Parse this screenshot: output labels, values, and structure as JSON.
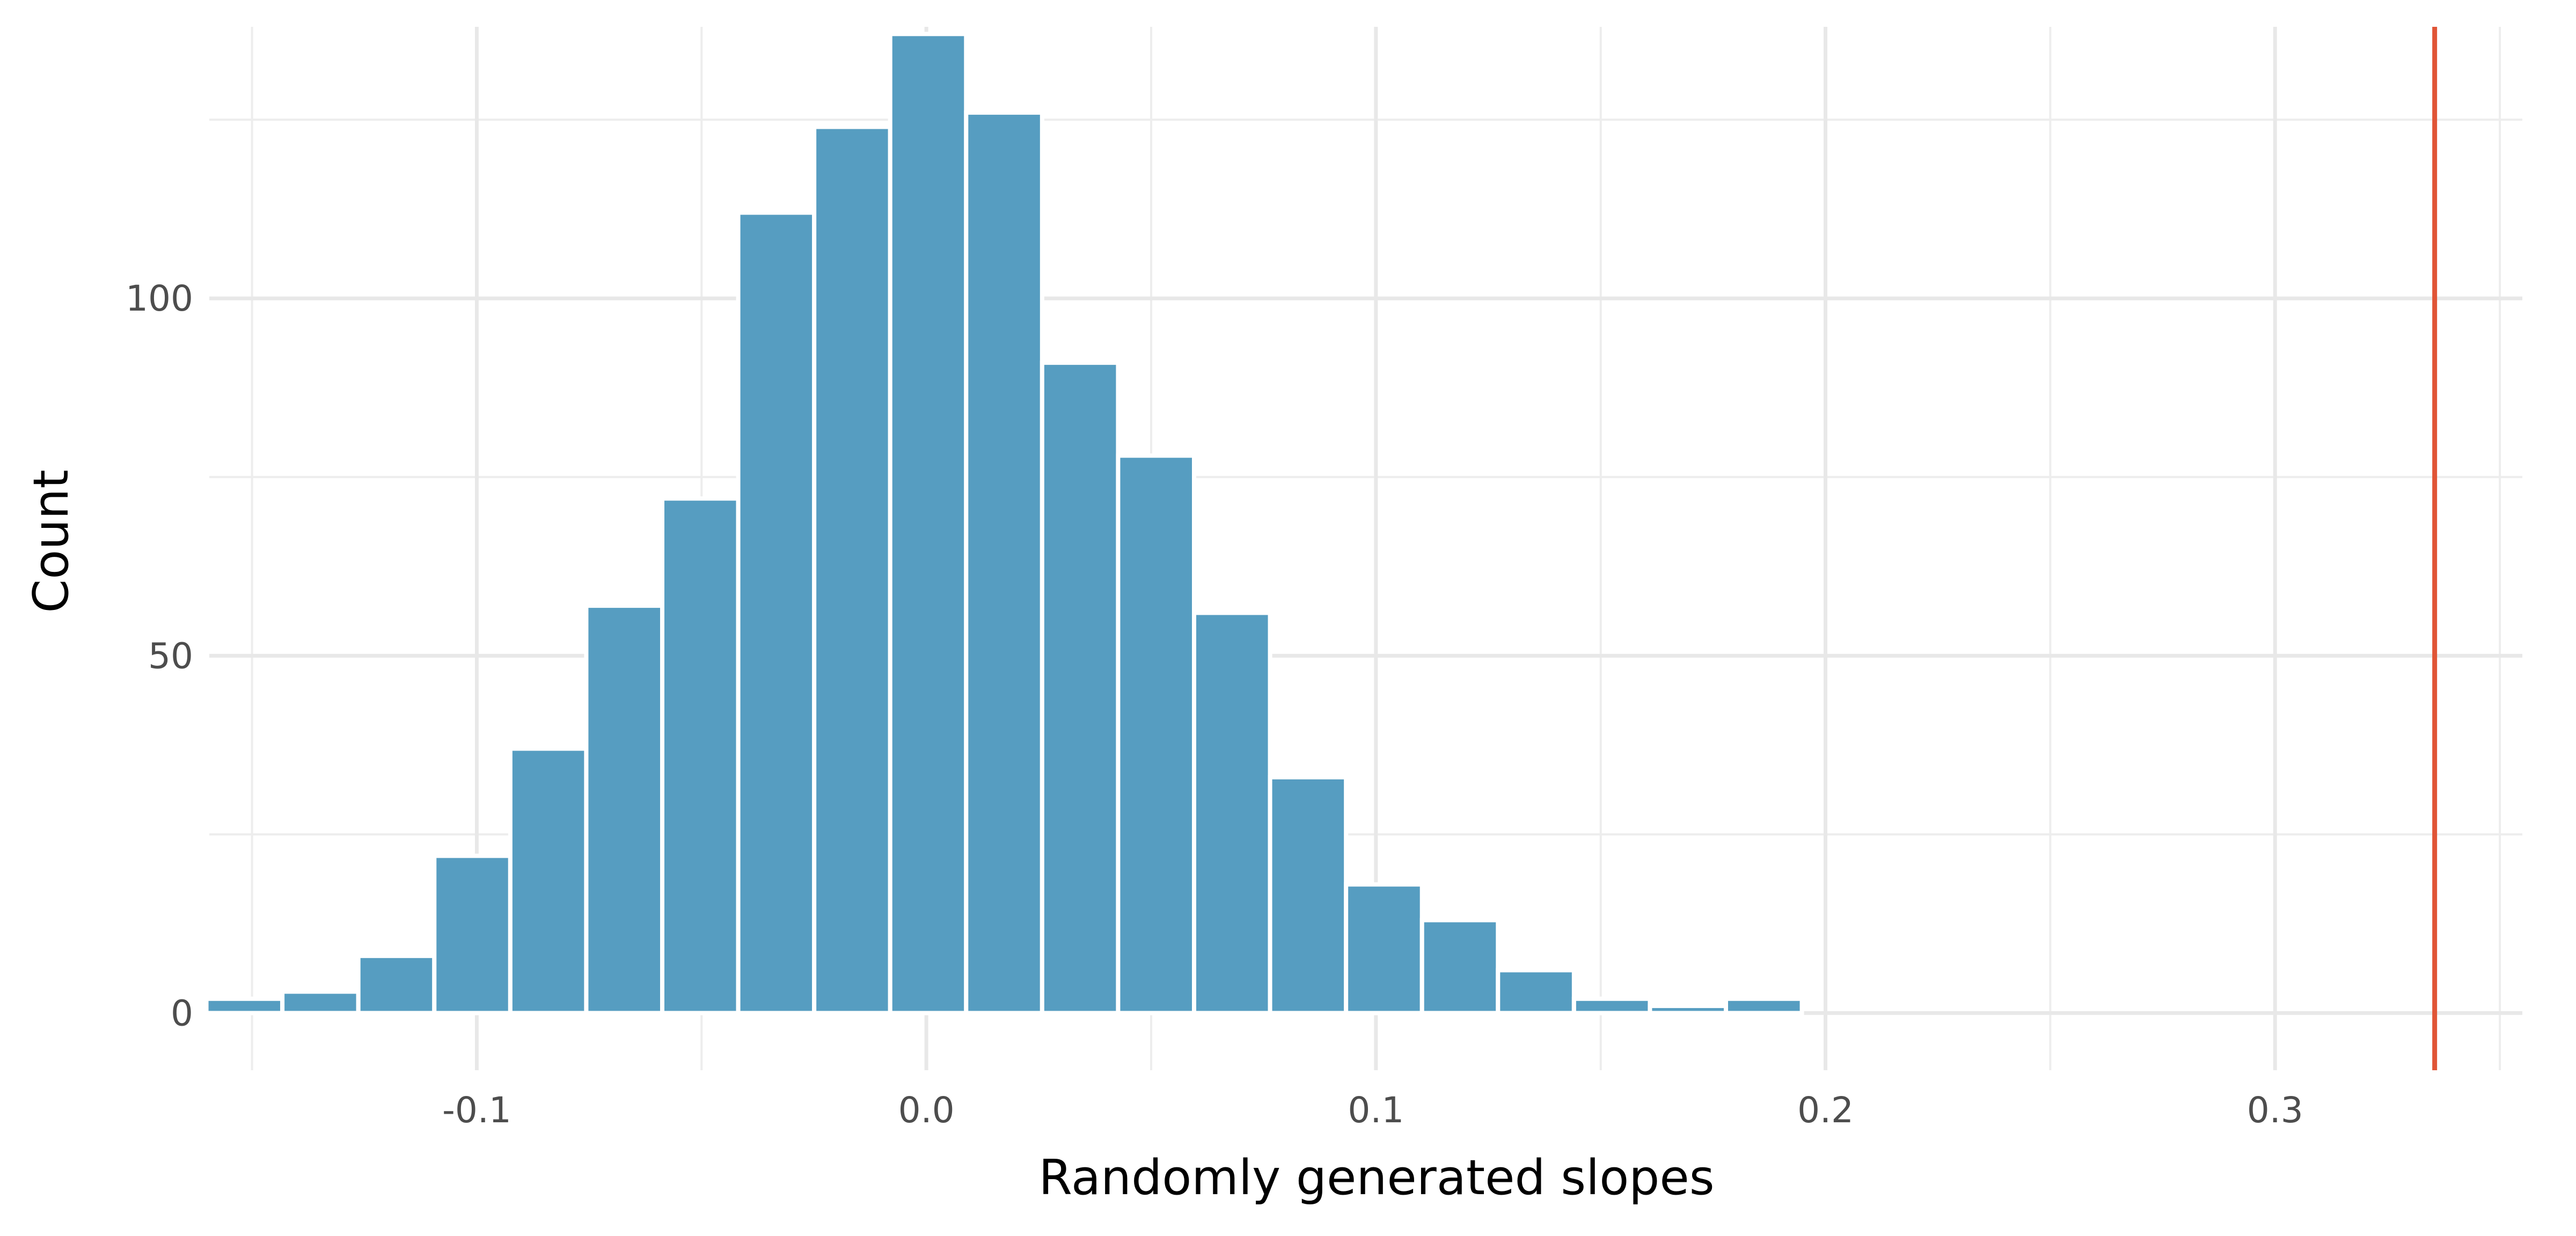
{
  "chart_data": {
    "type": "bar",
    "title": "",
    "xlabel": "Randomly generated slopes",
    "ylabel": "Count",
    "xlim": [
      -0.1595,
      0.355
    ],
    "ylim": [
      -8,
      138
    ],
    "x_ticks": [
      -0.1,
      0.0,
      0.1,
      0.2,
      0.3
    ],
    "x_tick_labels": [
      "-0.1",
      "0.0",
      "0.1",
      "0.2",
      "0.3"
    ],
    "y_ticks": [
      0,
      50,
      100
    ],
    "y_tick_labels": [
      "0",
      "50",
      "100"
    ],
    "grid": true,
    "legend": "none",
    "bar_color": "#569DC1",
    "reference_line": {
      "x": 0.3355,
      "color": "#E05536"
    },
    "bins": [
      {
        "x": -0.1517,
        "count": 2
      },
      {
        "x": -0.1348,
        "count": 3
      },
      {
        "x": -0.1179,
        "count": 8
      },
      {
        "x": -0.101,
        "count": 22
      },
      {
        "x": -0.0841,
        "count": 37
      },
      {
        "x": -0.0672,
        "count": 57
      },
      {
        "x": -0.0503,
        "count": 72
      },
      {
        "x": -0.0334,
        "count": 112
      },
      {
        "x": -0.0165,
        "count": 124
      },
      {
        "x": 0.0004,
        "count": 137
      },
      {
        "x": 0.0173,
        "count": 126
      },
      {
        "x": 0.0342,
        "count": 91
      },
      {
        "x": 0.0511,
        "count": 78
      },
      {
        "x": 0.068,
        "count": 56
      },
      {
        "x": 0.0849,
        "count": 33
      },
      {
        "x": 0.1018,
        "count": 18
      },
      {
        "x": 0.1187,
        "count": 13
      },
      {
        "x": 0.1356,
        "count": 6
      },
      {
        "x": 0.1525,
        "count": 2
      },
      {
        "x": 0.1694,
        "count": 1
      },
      {
        "x": 0.1863,
        "count": 2
      }
    ],
    "bin_width": 0.0169
  }
}
